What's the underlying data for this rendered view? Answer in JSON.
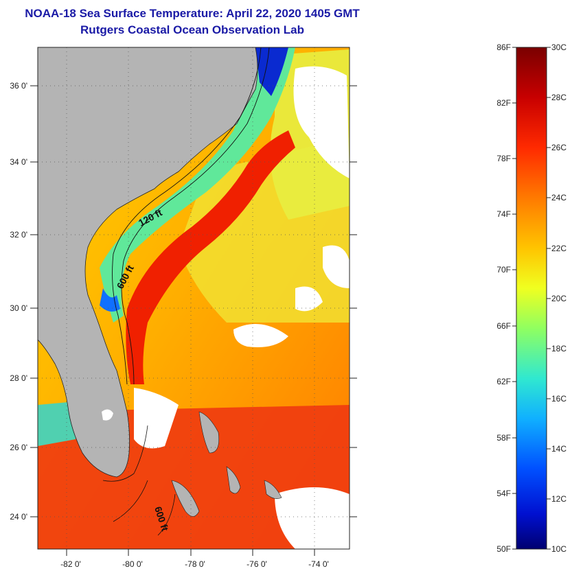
{
  "header": {
    "title_line1": "NOAA-18 Sea Surface Temperature:  April 22, 2020 1405 GMT",
    "title_line2": "Rutgers Coastal Ocean Observation Lab"
  },
  "map": {
    "region": "US Southeast Atlantic coast / Gulf Stream / Bahamas",
    "lat_labels": [
      "36 0'",
      "34 0'",
      "32 0'",
      "30 0'",
      "28 0'",
      "26 0'",
      "24 0'"
    ],
    "lon_labels": [
      "-82 0'",
      "-80 0'",
      "-78 0'",
      "-76 0'",
      "-74 0'"
    ],
    "lat_range": [
      23.0,
      37.0
    ],
    "lon_range": [
      -83.0,
      -73.0
    ],
    "land_color": "#b4b4b4",
    "cloud_color": "#ffffff",
    "grid": "dotted"
  },
  "contours": {
    "labels": [
      "120 ft",
      "600 ft",
      "600 ft"
    ]
  },
  "colorbar": {
    "fahrenheit_labels": [
      "86F",
      "82F",
      "78F",
      "74F",
      "70F",
      "66F",
      "62F",
      "58F",
      "54F",
      "50F"
    ],
    "celsius_labels": [
      "30C",
      "28C",
      "26C",
      "24C",
      "22C",
      "20C",
      "18C",
      "16C",
      "14C",
      "12C",
      "10C"
    ],
    "range_f": [
      50,
      86
    ],
    "range_c": [
      10,
      30
    ],
    "colors": [
      "#7a0000",
      "#c80000",
      "#ff3000",
      "#ff8000",
      "#ffd000",
      "#e0ff30",
      "#80ff80",
      "#20e0ff",
      "#0080ff",
      "#0020e0",
      "#000080"
    ]
  }
}
